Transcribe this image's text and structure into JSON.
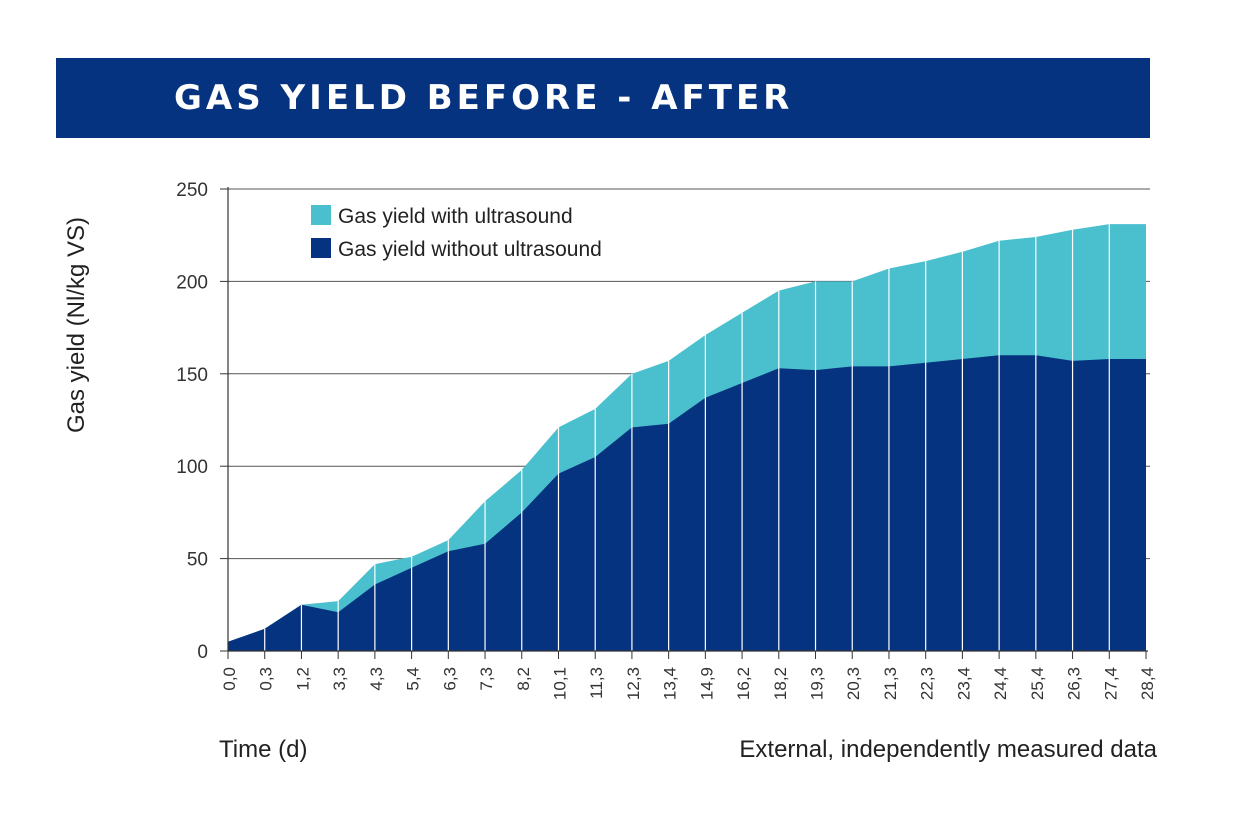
{
  "colors": {
    "banner": "#06337f",
    "with_ultrasound": "#4abfcd",
    "without_ultrasound": "#06337f",
    "grid": "#555555",
    "separator": "#ffffff"
  },
  "chart_data": {
    "type": "area",
    "title": "GAS YIELD BEFORE - AFTER",
    "xlabel": "Time (d)",
    "ylabel": "Gas yield  (Nl/kg VS)",
    "note": "External, independently measured data",
    "categories": [
      "0,0",
      "0,3",
      "1,2",
      "3,3",
      "4,3",
      "5,4",
      "6,3",
      "7,3",
      "8,2",
      "10,1",
      "11,3",
      "12,3",
      "13,4",
      "14,9",
      "16,2",
      "18,2",
      "19,3",
      "20,3",
      "21,3",
      "22,3",
      "23,4",
      "24,4",
      "25,4",
      "26,3",
      "27,4",
      "28,4"
    ],
    "series": [
      {
        "name": "Gas yield with ultrasound",
        "color": "#4abfcd",
        "values": [
          5,
          12,
          25,
          27,
          47,
          51,
          60,
          81,
          98,
          121,
          131,
          150,
          157,
          171,
          183,
          195,
          200,
          200,
          207,
          211,
          216,
          222,
          224,
          228,
          231,
          231
        ]
      },
      {
        "name": "Gas yield without ultrasound",
        "color": "#06337f",
        "values": [
          5,
          12,
          25,
          21,
          36,
          45,
          54,
          58,
          75,
          96,
          105,
          121,
          123,
          137,
          145,
          153,
          152,
          154,
          154,
          156,
          158,
          160,
          160,
          157,
          158,
          158
        ]
      }
    ],
    "ylim": [
      0,
      250
    ],
    "yticks": [
      0,
      50,
      100,
      150,
      200,
      250
    ],
    "grid": true,
    "legend": "top-left"
  }
}
